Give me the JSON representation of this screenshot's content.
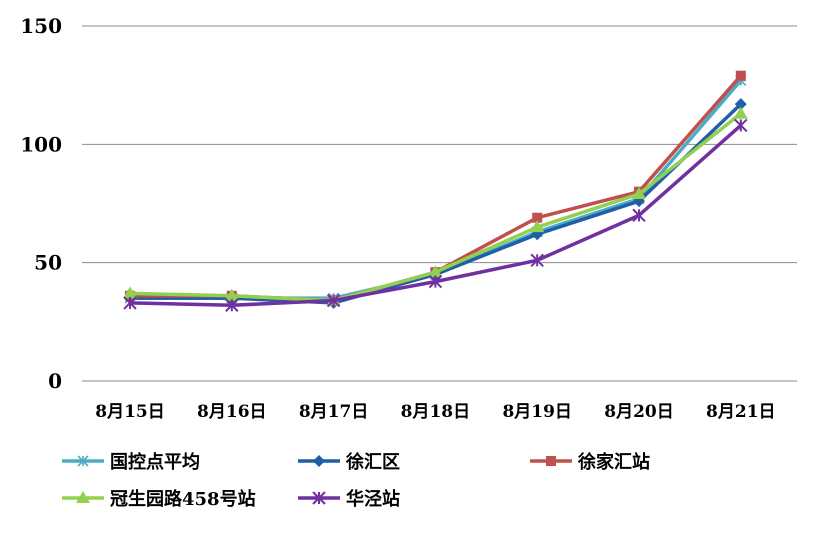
{
  "chart_data": {
    "type": "line",
    "title": "",
    "xlabel": "",
    "ylabel": "",
    "categories": [
      "8月15日",
      "8月16日",
      "8月17日",
      "8月18日",
      "8月19日",
      "8月20日",
      "8月21日"
    ],
    "ylim": [
      0,
      150
    ],
    "yticks": [
      0,
      50,
      100,
      150
    ],
    "grid": true,
    "legend_position": "bottom",
    "series": [
      {
        "name": "国控点平均",
        "color": "#4bacc6",
        "marker": "asterisk",
        "values": [
          35,
          35,
          35,
          45,
          63,
          77,
          127
        ]
      },
      {
        "name": "徐汇区",
        "color": "#1f5fa8",
        "marker": "diamond",
        "values": [
          35,
          35,
          33,
          45,
          62,
          76,
          117
        ]
      },
      {
        "name": "徐家汇站",
        "color": "#c0504d",
        "marker": "square",
        "values": [
          36,
          36,
          34,
          46,
          69,
          80,
          129
        ]
      },
      {
        "name": "冠生园路458号站",
        "color": "#92d050",
        "marker": "triangle",
        "values": [
          37,
          36,
          34,
          46,
          65,
          79,
          113
        ]
      },
      {
        "name": "华泾站",
        "color": "#7030a0",
        "marker": "star",
        "values": [
          33,
          32,
          34,
          42,
          51,
          70,
          108
        ]
      }
    ]
  }
}
